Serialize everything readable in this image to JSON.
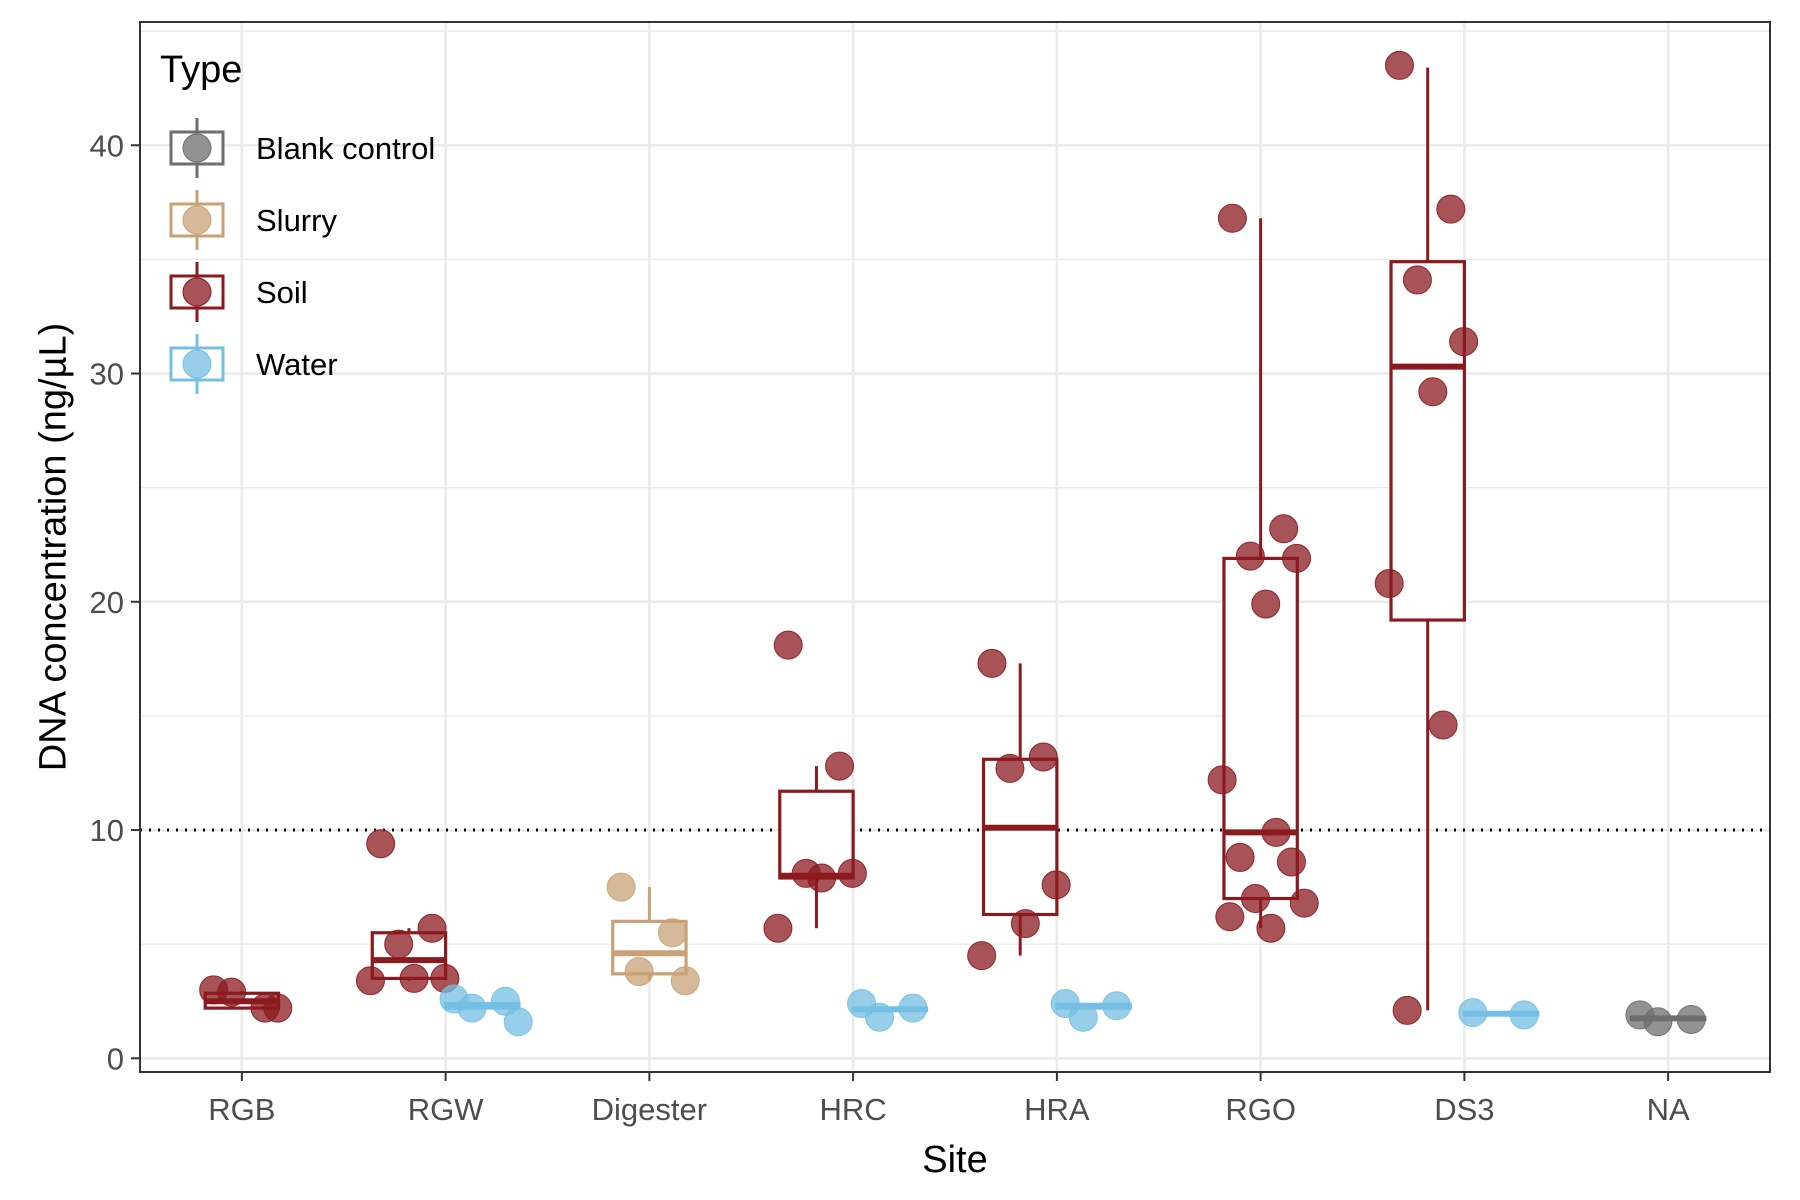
{
  "chart_data": {
    "type": "box",
    "xlabel": "Site",
    "ylabel": "DNA concentration (ng/µL)",
    "ylim": [
      -0.6,
      45.4
    ],
    "yticks": [
      0,
      10,
      20,
      30,
      40
    ],
    "categories": [
      "RGB",
      "RGW",
      "Digester",
      "HRC",
      "HRA",
      "RGO",
      "DS3",
      "NA"
    ],
    "reference_line": {
      "y": 10,
      "style": "dotted"
    },
    "grid": true,
    "legend": {
      "title": "Type",
      "placement": "top-left inside",
      "entries": [
        "Blank control",
        "Slurry",
        "Soil",
        "Water"
      ]
    },
    "colors": {
      "Blank control": "#6e6e6e",
      "Slurry": "#c8a276",
      "Soil": "#8b1a1f",
      "Water": "#74bfe3"
    },
    "series": [
      {
        "name": "Soil",
        "boxes": [
          {
            "category": "RGB",
            "q1": 2.2,
            "median": 2.5,
            "q3": 2.85,
            "whisker_low": 2.2,
            "whisker_high": 2.95
          },
          {
            "category": "RGW",
            "q1": 3.5,
            "median": 4.3,
            "q3": 5.5,
            "whisker_low": 3.4,
            "whisker_high": 5.7
          },
          {
            "category": "HRC",
            "q1": 7.9,
            "median": 8.0,
            "q3": 11.7,
            "whisker_low": 5.7,
            "whisker_high": 12.8
          },
          {
            "category": "HRA",
            "q1": 6.3,
            "median": 10.1,
            "q3": 13.1,
            "whisker_low": 4.5,
            "whisker_high": 17.3
          },
          {
            "category": "RGO",
            "q1": 7.0,
            "median": 9.9,
            "q3": 21.9,
            "whisker_low": 5.7,
            "whisker_high": 36.8
          },
          {
            "category": "DS3",
            "q1": 19.2,
            "median": 30.3,
            "q3": 34.9,
            "whisker_low": 2.1,
            "whisker_high": 43.4
          }
        ],
        "points": [
          {
            "category": "RGB",
            "y": 3.0
          },
          {
            "category": "RGB",
            "y": 2.2
          },
          {
            "category": "RGB",
            "y": 2.9
          },
          {
            "category": "RGB",
            "y": 2.2
          },
          {
            "category": "RGW",
            "y": 9.4
          },
          {
            "category": "RGW",
            "y": 5.7
          },
          {
            "category": "RGW",
            "y": 5.0
          },
          {
            "category": "RGW",
            "y": 3.5
          },
          {
            "category": "RGW",
            "y": 3.5
          },
          {
            "category": "RGW",
            "y": 3.4
          },
          {
            "category": "HRC",
            "y": 18.1
          },
          {
            "category": "HRC",
            "y": 12.8
          },
          {
            "category": "HRC",
            "y": 8.1
          },
          {
            "category": "HRC",
            "y": 8.1
          },
          {
            "category": "HRC",
            "y": 7.9
          },
          {
            "category": "HRC",
            "y": 5.7
          },
          {
            "category": "HRA",
            "y": 17.3
          },
          {
            "category": "HRA",
            "y": 13.2
          },
          {
            "category": "HRA",
            "y": 12.7
          },
          {
            "category": "HRA",
            "y": 7.6
          },
          {
            "category": "HRA",
            "y": 5.9
          },
          {
            "category": "HRA",
            "y": 4.5
          },
          {
            "category": "RGO",
            "y": 36.8
          },
          {
            "category": "RGO",
            "y": 23.2
          },
          {
            "category": "RGO",
            "y": 22.0
          },
          {
            "category": "RGO",
            "y": 21.9
          },
          {
            "category": "RGO",
            "y": 19.9
          },
          {
            "category": "RGO",
            "y": 12.2
          },
          {
            "category": "RGO",
            "y": 9.9
          },
          {
            "category": "RGO",
            "y": 8.8
          },
          {
            "category": "RGO",
            "y": 8.6
          },
          {
            "category": "RGO",
            "y": 7.0
          },
          {
            "category": "RGO",
            "y": 6.8
          },
          {
            "category": "RGO",
            "y": 6.2
          },
          {
            "category": "RGO",
            "y": 5.7
          },
          {
            "category": "DS3",
            "y": 43.5
          },
          {
            "category": "DS3",
            "y": 37.2
          },
          {
            "category": "DS3",
            "y": 34.1
          },
          {
            "category": "DS3",
            "y": 31.4
          },
          {
            "category": "DS3",
            "y": 29.2
          },
          {
            "category": "DS3",
            "y": 20.8
          },
          {
            "category": "DS3",
            "y": 14.6
          },
          {
            "category": "DS3",
            "y": 2.1
          }
        ]
      },
      {
        "name": "Water",
        "boxes": [
          {
            "category": "RGW",
            "q1": 2.2,
            "median": 2.3,
            "q3": 2.4,
            "whisker_low": 2.2,
            "whisker_high": 2.4
          },
          {
            "category": "HRC",
            "q1": 2.1,
            "median": 2.15,
            "q3": 2.2,
            "whisker_low": 2.1,
            "whisker_high": 2.2
          },
          {
            "category": "HRA",
            "q1": 2.2,
            "median": 2.3,
            "q3": 2.35,
            "whisker_low": 2.2,
            "whisker_high": 2.35
          },
          {
            "category": "DS3",
            "q1": 1.9,
            "median": 1.95,
            "q3": 2.0,
            "whisker_low": 1.9,
            "whisker_high": 2.0
          }
        ],
        "points": [
          {
            "category": "RGW",
            "y": 2.6
          },
          {
            "category": "RGW",
            "y": 2.5
          },
          {
            "category": "RGW",
            "y": 2.2
          },
          {
            "category": "RGW",
            "y": 1.6
          },
          {
            "category": "HRC",
            "y": 2.4
          },
          {
            "category": "HRC",
            "y": 2.2
          },
          {
            "category": "HRC",
            "y": 1.8
          },
          {
            "category": "HRA",
            "y": 2.4
          },
          {
            "category": "HRA",
            "y": 2.3
          },
          {
            "category": "HRA",
            "y": 1.8
          },
          {
            "category": "DS3",
            "y": 2.0
          },
          {
            "category": "DS3",
            "y": 1.9
          }
        ]
      },
      {
        "name": "Slurry",
        "boxes": [
          {
            "category": "Digester",
            "q1": 3.7,
            "median": 4.6,
            "q3": 6.0,
            "whisker_low": 3.4,
            "whisker_high": 7.5
          }
        ],
        "points": [
          {
            "category": "Digester",
            "y": 7.5
          },
          {
            "category": "Digester",
            "y": 5.5
          },
          {
            "category": "Digester",
            "y": 3.8
          },
          {
            "category": "Digester",
            "y": 3.4
          }
        ]
      },
      {
        "name": "Blank control",
        "boxes": [
          {
            "category": "NA",
            "q1": 1.7,
            "median": 1.75,
            "q3": 1.8,
            "whisker_low": 1.7,
            "whisker_high": 1.8
          }
        ],
        "points": [
          {
            "category": "NA",
            "y": 1.9
          },
          {
            "category": "NA",
            "y": 1.7
          },
          {
            "category": "NA",
            "y": 1.6
          }
        ]
      }
    ]
  }
}
